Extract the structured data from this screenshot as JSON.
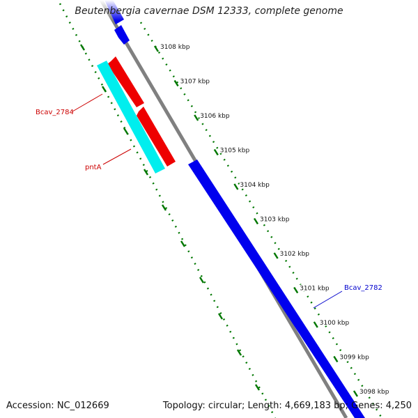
{
  "title": "Beutenbergia cavernae DSM 12333, complete genome",
  "accession": "Accession: NC_012669",
  "stats": "Topology: circular; Length: 4,669,183 bp; Genes: 4,250",
  "ticks": [
    "3108 kbp",
    "3107 kbp",
    "3106 kbp",
    "3105 kbp",
    "3104 kbp",
    "3103 kbp",
    "3102 kbp",
    "3101 kbp",
    "3100 kbp",
    "3099 kbp",
    "3098 kbp"
  ],
  "gene_labels": [
    {
      "text": "Bcav_2784",
      "color": "#cc0000"
    },
    {
      "text": "pntA",
      "color": "#cc0000"
    },
    {
      "text": "Bcav_2782",
      "color": "#0000cc"
    }
  ],
  "colors": {
    "backbone": "#808080",
    "forward_gene": "#0000ee",
    "reverse_gene": "#ee0000",
    "cds_outer": "#00eeee",
    "tick_ring": "#007700"
  }
}
